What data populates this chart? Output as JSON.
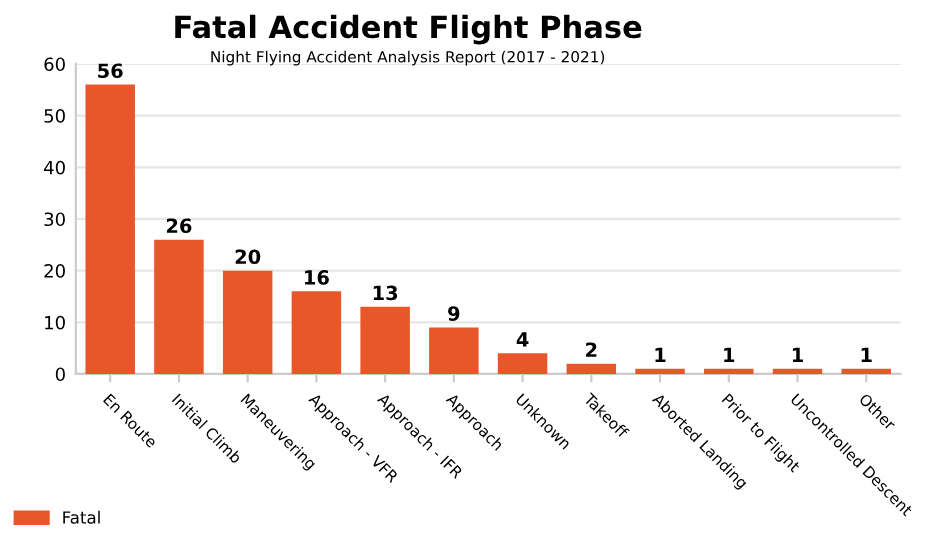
{
  "chart_data": {
    "type": "bar",
    "title": "Fatal Accident Flight Phase",
    "subtitle": "Night Flying Accident Analysis Report (2017 - 2021)",
    "categories": [
      "En Route",
      "Initial Climb",
      "Maneuvering",
      "Approach - VFR",
      "Approach - IFR",
      "Approach",
      "Unknown",
      "Takeoff",
      "Aborted Landing",
      "Prior to Flight",
      "Uncontrolled Descent",
      "Other"
    ],
    "series": [
      {
        "name": "Fatal",
        "color": "#e8562a",
        "values": [
          56,
          26,
          20,
          16,
          13,
          9,
          4,
          2,
          1,
          1,
          1,
          1
        ]
      }
    ],
    "ylim": [
      0,
      60
    ],
    "yticks": [
      0,
      10,
      20,
      30,
      40,
      50,
      60
    ],
    "grid": "y",
    "legend": "bottom left",
    "data_labels": true
  }
}
